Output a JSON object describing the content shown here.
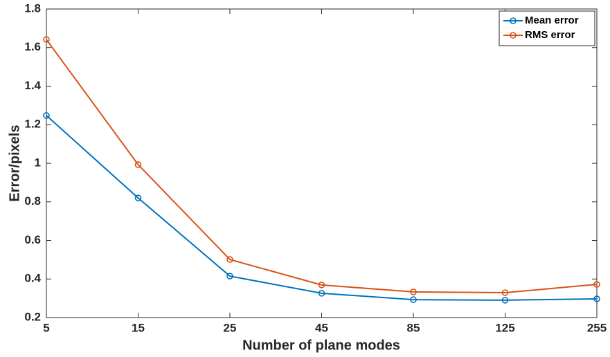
{
  "chart_data": {
    "type": "line",
    "xlabel": "Number of plane modes",
    "ylabel": "Error/pixels",
    "categories": [
      "5",
      "15",
      "25",
      "45",
      "85",
      "125",
      "255"
    ],
    "series": [
      {
        "name": "Mean error",
        "color": "#0072bd",
        "values": [
          1.248,
          0.82,
          0.415,
          0.326,
          0.293,
          0.29,
          0.297
        ]
      },
      {
        "name": "RMS error",
        "color": "#d95319",
        "values": [
          1.642,
          0.993,
          0.501,
          0.369,
          0.333,
          0.329,
          0.372
        ]
      }
    ],
    "ylim": [
      0.2,
      1.8
    ],
    "yticks": [
      0.2,
      0.4,
      0.6,
      0.8,
      1,
      1.2,
      1.4,
      1.6,
      1.8
    ],
    "legend": "northeast"
  }
}
